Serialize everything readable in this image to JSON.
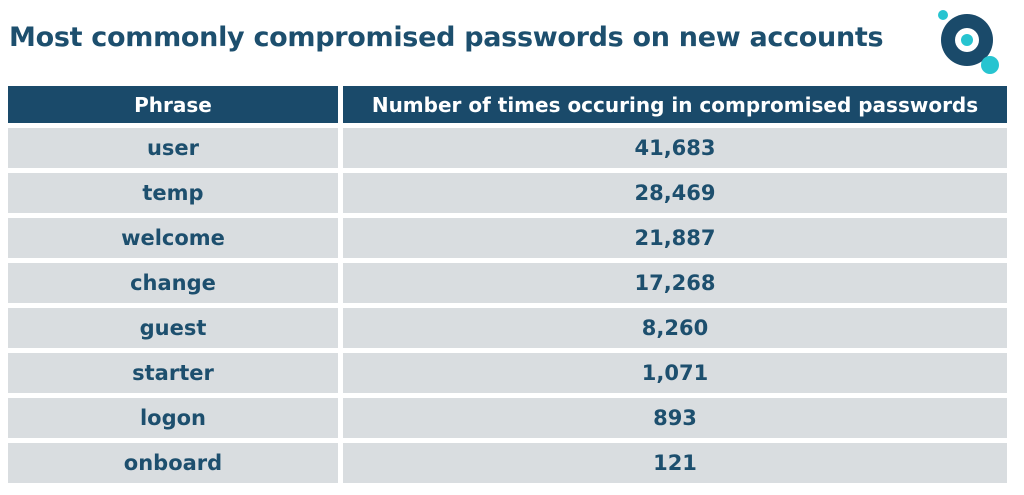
{
  "title": "Most commonly compromised passwords on new accounts",
  "logo": {
    "icon": "ring-dots-logo",
    "colors": {
      "primary": "#1a4a6a",
      "accent": "#27c4d0"
    }
  },
  "colors": {
    "header_bg": "#1a4a6a",
    "row_bg": "#d9dde0",
    "text": "#1d4f6e"
  },
  "chart_data": {
    "type": "table",
    "title": "Most commonly compromised passwords on new accounts",
    "columns": [
      "Phrase",
      "Number of times occuring in compromised passwords"
    ],
    "rows": [
      [
        "user",
        "41,683"
      ],
      [
        "temp",
        "28,469"
      ],
      [
        "welcome",
        "21,887"
      ],
      [
        "change",
        "17,268"
      ],
      [
        "guest",
        "8,260"
      ],
      [
        "starter",
        "1,071"
      ],
      [
        "logon",
        "893"
      ],
      [
        "onboard",
        "121"
      ]
    ],
    "values": [
      41683,
      28469,
      21887,
      17268,
      8260,
      1071,
      893,
      121
    ]
  }
}
